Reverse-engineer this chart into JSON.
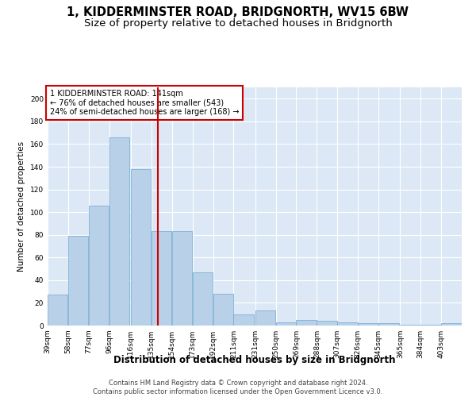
{
  "title": "1, KIDDERMINSTER ROAD, BRIDGNORTH, WV15 6BW",
  "subtitle": "Size of property relative to detached houses in Bridgnorth",
  "xlabel": "Distribution of detached houses by size in Bridgnorth",
  "ylabel": "Number of detached properties",
  "bar_color": "#b8d0e8",
  "bar_edge_color": "#6fa8d0",
  "background_color": "#dce8f5",
  "grid_color": "#ffffff",
  "vline_x": 141,
  "vline_color": "#cc0000",
  "annotation_text": "1 KIDDERMINSTER ROAD: 141sqm\n← 76% of detached houses are smaller (543)\n24% of semi-detached houses are larger (168) →",
  "annotation_box_color": "#cc0000",
  "bins": [
    39,
    58,
    77,
    96,
    116,
    135,
    154,
    173,
    192,
    211,
    231,
    250,
    269,
    288,
    307,
    326,
    345,
    365,
    384,
    403,
    422
  ],
  "values": [
    27,
    79,
    106,
    166,
    138,
    83,
    83,
    47,
    28,
    10,
    13,
    3,
    5,
    4,
    3,
    2,
    2,
    1,
    1,
    2
  ],
  "ylim": [
    0,
    210
  ],
  "yticks": [
    0,
    20,
    40,
    60,
    80,
    100,
    120,
    140,
    160,
    180,
    200
  ],
  "footer": "Contains HM Land Registry data © Crown copyright and database right 2024.\nContains public sector information licensed under the Open Government Licence v3.0.",
  "title_fontsize": 10.5,
  "subtitle_fontsize": 9.5,
  "xlabel_fontsize": 8.5,
  "ylabel_fontsize": 7.5,
  "tick_fontsize": 6.5,
  "footer_fontsize": 6.0,
  "annotation_fontsize": 7.0
}
